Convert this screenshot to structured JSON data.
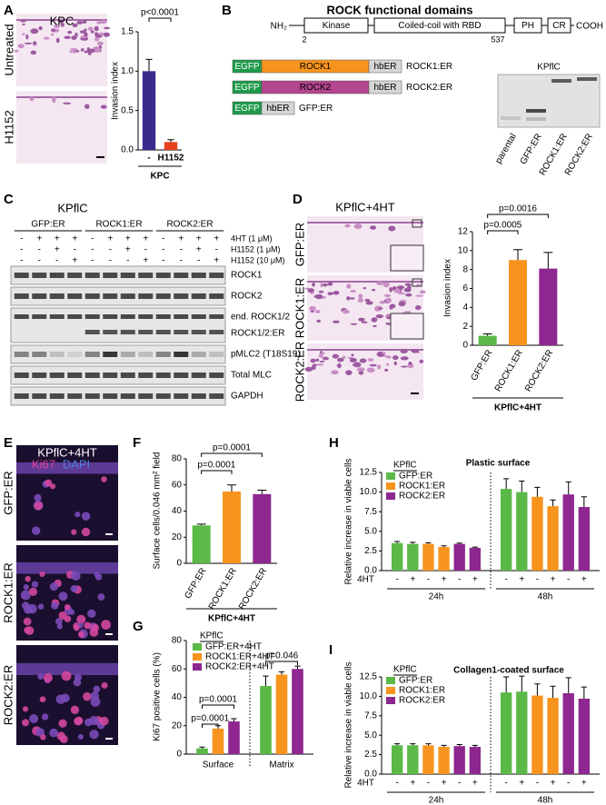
{
  "chart_data": [
    {
      "type": "bar",
      "ylabel": "Invasion index",
      "categories": [
        "-",
        "H1152"
      ],
      "values": [
        1.0,
        0.1
      ],
      "errors": [
        0.15,
        0.03
      ],
      "colors": [
        "#3a2a8c",
        "#e8401c"
      ],
      "ylim": [
        0,
        1.5
      ],
      "yticks": [
        {
          "value": 0,
          "label": "0.0"
        },
        0.5,
        {
          "value": 1,
          "label": "1.0"
        },
        1.5
      ],
      "annotations": [
        "p<0.0001"
      ],
      "group_label": "KPC"
    },
    {
      "type": "bar",
      "ylabel": "Invasion index",
      "categories": [
        "GFP:ER",
        "ROCK1:ER",
        "ROCK2:ER"
      ],
      "values": [
        1.0,
        9.0,
        8.1
      ],
      "errors": [
        0.2,
        1.1,
        1.7
      ],
      "colors": [
        "#5bb947",
        "#f7941d",
        "#8e278f"
      ],
      "ylim": [
        0,
        12
      ],
      "yticks": [
        0,
        2,
        4,
        6,
        8,
        10,
        12
      ],
      "annotations": [
        "p=0.0016",
        "p=0.0005"
      ],
      "group_label": "KPflC+4HT"
    },
    {
      "type": "bar",
      "ylabel": "Surface cells/0.046 mm² field",
      "categories": [
        "GFP:ER",
        "ROCK1:ER",
        "ROCK2:ER"
      ],
      "values": [
        29,
        55,
        53
      ],
      "errors": [
        1,
        5,
        3
      ],
      "colors": [
        "#5bb947",
        "#f7941d",
        "#8e278f"
      ],
      "ylim": [
        0,
        80
      ],
      "yticks": [
        0,
        20,
        40,
        60,
        80
      ],
      "annotations": [
        "p=0.0001",
        "p=0.0001"
      ],
      "group_label": "KPflC+4HT"
    },
    {
      "type": "grouped_bar",
      "ylabel": "Ki67 positive cells (%)",
      "categories": [
        "Surface",
        "Matrix"
      ],
      "legend_title": "KPflC",
      "series": [
        {
          "name": "GFP:ER+4HT",
          "color": "#5bb947",
          "values": [
            4,
            48
          ],
          "errors": [
            1,
            7
          ]
        },
        {
          "name": "ROCK1:ER+4HT",
          "color": "#f7941d",
          "values": [
            18,
            56
          ],
          "errors": [
            2,
            2
          ]
        },
        {
          "name": "ROCK2:ER+4HT",
          "color": "#8e278f",
          "values": [
            23,
            60
          ],
          "errors": [
            2,
            2
          ]
        }
      ],
      "ylim": [
        0,
        80
      ],
      "yticks": [
        0,
        20,
        40,
        60,
        80
      ],
      "annotations": [
        "p=0.0001",
        "p=0.0001",
        "p=0.046"
      ]
    },
    {
      "type": "grouped_bar",
      "title": "Plastic surface",
      "ylabel": "Relative increase in viable cells",
      "categories": [
        "24h",
        "48h"
      ],
      "condition_label": "4HT",
      "conditions": [
        "-",
        "+"
      ],
      "legend_title": "KPflC",
      "series": [
        {
          "name": "GFP:ER",
          "color": "#5bb947",
          "values": [
            [
              3.5,
              3.4
            ],
            [
              10.4,
              10.0
            ]
          ],
          "errors": [
            [
              0.2,
              0.2
            ],
            [
              1.3,
              1.4
            ]
          ]
        },
        {
          "name": "ROCK1:ER",
          "color": "#f7941d",
          "values": [
            [
              3.4,
              3.0
            ],
            [
              9.4,
              8.2
            ]
          ],
          "errors": [
            [
              0.15,
              0.15
            ],
            [
              1.2,
              0.8
            ]
          ]
        },
        {
          "name": "ROCK2:ER",
          "color": "#8e278f",
          "values": [
            [
              3.4,
              2.9
            ],
            [
              9.7,
              8.1
            ]
          ],
          "errors": [
            [
              0.1,
              0.1
            ],
            [
              1.6,
              1.3
            ]
          ]
        }
      ],
      "ylim": [
        0,
        12.5
      ],
      "yticks": [
        {
          "value": 0,
          "label": "0.0"
        },
        2.5,
        {
          "value": 5,
          "label": "5.0"
        },
        7.5,
        {
          "value": 10,
          "label": "10.0"
        },
        12.5
      ]
    },
    {
      "type": "grouped_bar",
      "title": "Collagen1-coated surface",
      "ylabel": "Relative increase in viable cells",
      "categories": [
        "24h",
        "48h"
      ],
      "condition_label": "4HT",
      "conditions": [
        "-",
        "+"
      ],
      "legend_title": "KPflC",
      "series": [
        {
          "name": "GFP:ER",
          "color": "#5bb947",
          "values": [
            [
              3.7,
              3.7
            ],
            [
              10.5,
              10.6
            ]
          ],
          "errors": [
            [
              0.2,
              0.2
            ],
            [
              2.0,
              2.0
            ]
          ]
        },
        {
          "name": "ROCK1:ER",
          "color": "#f7941d",
          "values": [
            [
              3.7,
              3.5
            ],
            [
              10.1,
              9.8
            ]
          ],
          "errors": [
            [
              0.2,
              0.2
            ],
            [
              1.5,
              1.5
            ]
          ]
        },
        {
          "name": "ROCK2:ER",
          "color": "#8e278f",
          "values": [
            [
              3.6,
              3.5
            ],
            [
              10.4,
              9.7
            ]
          ],
          "errors": [
            [
              0.2,
              0.2
            ],
            [
              2.0,
              1.5
            ]
          ]
        }
      ],
      "ylim": [
        0,
        12.5
      ],
      "yticks": [
        {
          "value": 0,
          "label": "0.0"
        },
        2.5,
        {
          "value": 5,
          "label": "5.0"
        },
        7.5,
        {
          "value": 10,
          "label": "10.0"
        },
        12.5
      ]
    }
  ],
  "panels": {
    "A": {
      "letter": "A",
      "title": "KPC",
      "rows": [
        "Untreated",
        "H1152"
      ]
    },
    "B": {
      "letter": "B",
      "title": "ROCK functional domains",
      "n_term": "NH₂",
      "c_term": "COOH",
      "domains": [
        "Kinase",
        "Coiled-coil with RBD",
        "PH",
        "CR"
      ],
      "positions": [
        2,
        537
      ],
      "constructs": [
        {
          "parts": [
            "EGFP",
            "ROCK1",
            "hbER"
          ],
          "colors": [
            "#1f9a4a",
            "#f7941d",
            "#d6d6d6"
          ],
          "name": "ROCK1:ER"
        },
        {
          "parts": [
            "EGFP",
            "ROCK2",
            "hbER"
          ],
          "colors": [
            "#1f9a4a",
            "#b4458f",
            "#d6d6d6"
          ],
          "name": "ROCK2:ER"
        },
        {
          "parts": [
            "EGFP",
            "hbER"
          ],
          "colors": [
            "#1f9a4a",
            "#d6d6d6"
          ],
          "name": "GFP:ER"
        }
      ],
      "blot": {
        "title": "KPflC",
        "lanes": [
          "parental",
          "GFP:ER",
          "ROCK1:ER",
          "ROCK2:ER"
        ]
      }
    },
    "C": {
      "letter": "C",
      "title": "KPflC",
      "groups": [
        "GFP:ER",
        "ROCK1:ER",
        "ROCK2:ER"
      ],
      "treatments": [
        {
          "name": "4HT (1 μM)",
          "signs": [
            "-",
            "+",
            "+",
            "+"
          ]
        },
        {
          "name": "H1152 (1 μM)",
          "signs": [
            "-",
            "-",
            "+",
            "-"
          ]
        },
        {
          "name": "H1152 (10 μM)",
          "signs": [
            "-",
            "-",
            "-",
            "+"
          ]
        }
      ],
      "blots": [
        "ROCK1",
        "ROCK2",
        "end. ROCK1/2",
        "ROCK1/2:ER",
        "pMLC2 (T18S19)",
        "Total MLC",
        "GAPDH"
      ]
    },
    "D": {
      "letter": "D",
      "title": "KPflC+4HT",
      "rows": [
        "GFP:ER",
        "ROCK1:ER",
        "ROCK2:ER"
      ]
    },
    "E": {
      "letter": "E",
      "title": "KPflC+4HT",
      "stains": [
        "Ki67",
        "DAPI"
      ],
      "rows": [
        "GFP:ER",
        "ROCK1:ER",
        "ROCK2:ER"
      ]
    },
    "F": {
      "letter": "F"
    },
    "G": {
      "letter": "G"
    },
    "H": {
      "letter": "H"
    },
    "I": {
      "letter": "I"
    }
  }
}
